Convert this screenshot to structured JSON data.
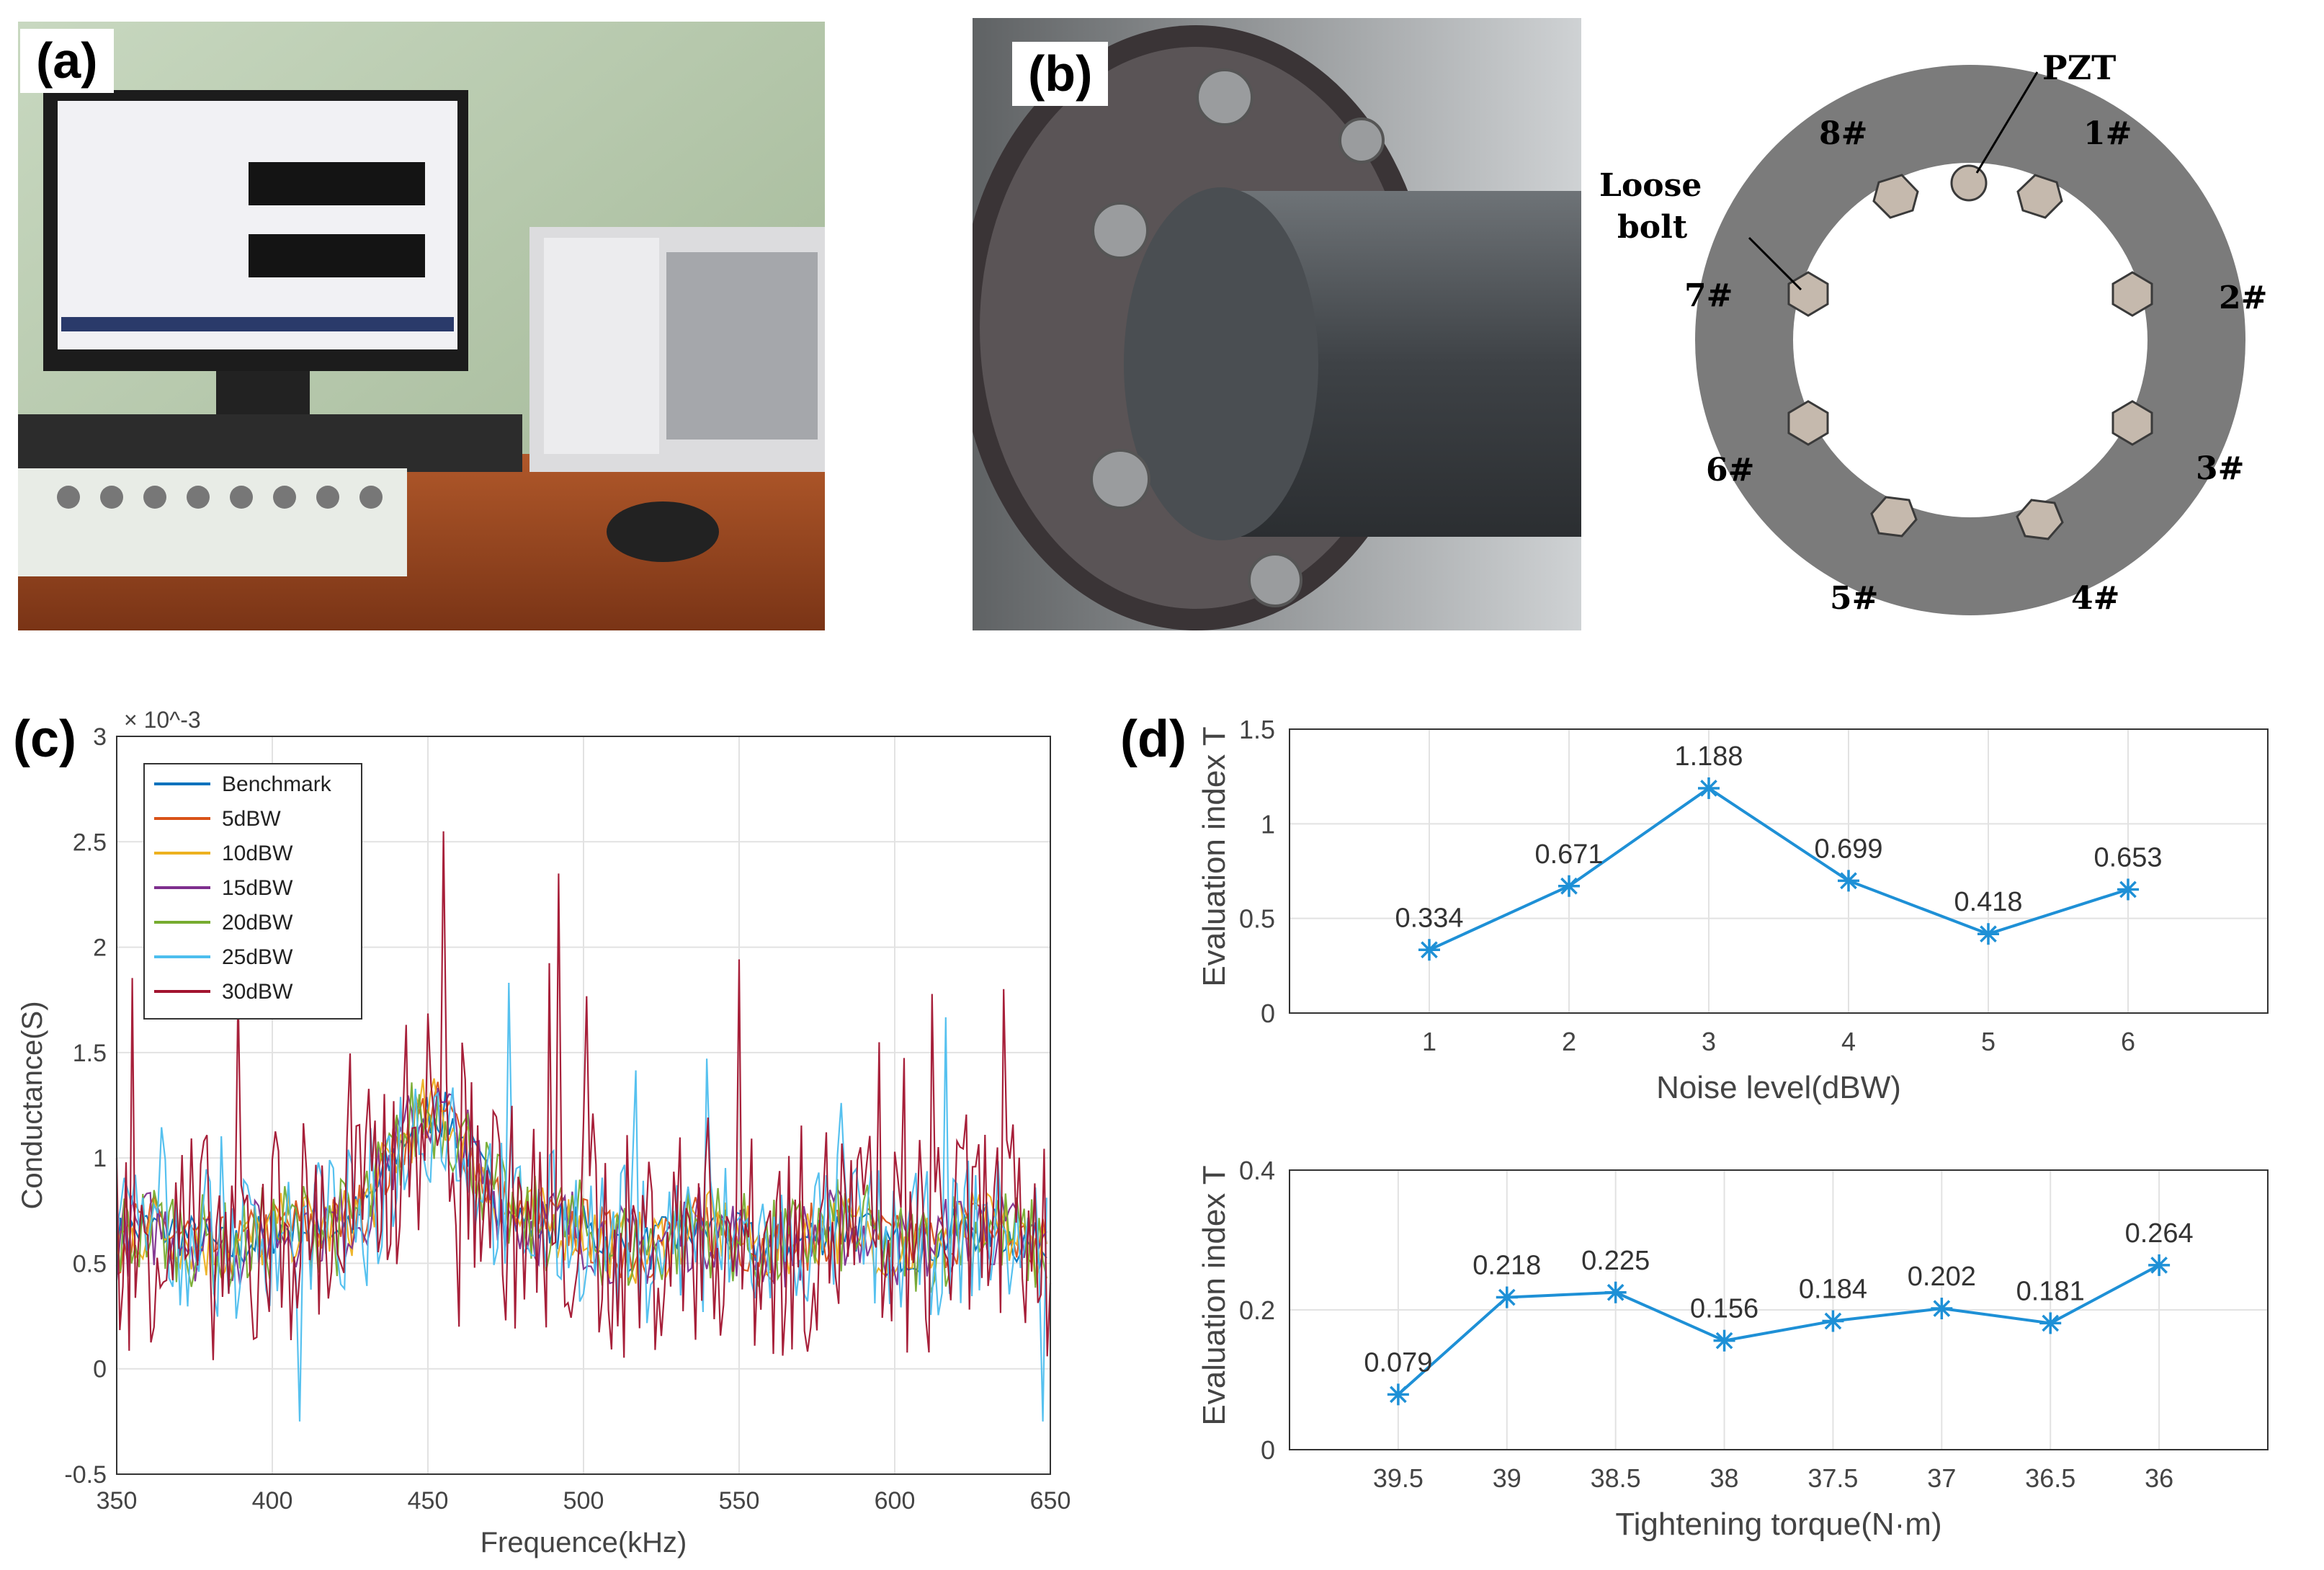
{
  "panel_a": {
    "label": "(a)"
  },
  "panel_b": {
    "label": "(b)",
    "pzt_label": "PZT",
    "loose_label_line1": "Loose",
    "loose_label_line2": "bolt",
    "bolts": [
      "1#",
      "2#",
      "3#",
      "4#",
      "5#",
      "6#",
      "7#",
      "8#"
    ]
  },
  "panel_c": {
    "label": "(c)",
    "exponent": "× 10^-3"
  },
  "panel_d": {
    "label": "(d)"
  },
  "chart_data": [
    {
      "id": "c",
      "type": "line",
      "title": "",
      "xlabel": "Frequence(kHz)",
      "ylabel": "Conductance(S)",
      "y_multiplier": "x 10^-3",
      "xlim": [
        350,
        650
      ],
      "ylim": [
        -0.5,
        3
      ],
      "x_ticks": [
        350,
        400,
        450,
        500,
        550,
        600,
        650
      ],
      "y_ticks": [
        -0.5,
        0,
        0.5,
        1,
        1.5,
        2,
        2.5,
        3
      ],
      "legend_position": "top-left",
      "grid": true,
      "series": [
        {
          "name": "Benchmark",
          "color": "#0072BD"
        },
        {
          "name": "5dBW",
          "color": "#D95319"
        },
        {
          "name": "10dBW",
          "color": "#EDB120"
        },
        {
          "name": "15dBW",
          "color": "#7E2F8E"
        },
        {
          "name": "20dBW",
          "color": "#77AC30"
        },
        {
          "name": "25dBW",
          "color": "#4DBEEE"
        },
        {
          "name": "30dBW",
          "color": "#A2142F"
        }
      ]
    },
    {
      "id": "d-top",
      "type": "line",
      "xlabel": "Noise level(dBW)",
      "ylabel": "Evaluation index T",
      "ylim": [
        0,
        1.5
      ],
      "y_ticks": [
        0,
        0.5,
        1,
        1.5
      ],
      "x_ticks": [
        "1",
        "2",
        "3",
        "4",
        "5",
        "6"
      ],
      "grid": true,
      "color": "#1E90D6",
      "categories": [
        "1",
        "2",
        "3",
        "4",
        "5",
        "6"
      ],
      "values": [
        0.334,
        0.671,
        1.188,
        0.699,
        0.418,
        0.653
      ],
      "labels": [
        "0.334",
        "0.671",
        "1.188",
        "0.699",
        "0.418",
        "0.653"
      ]
    },
    {
      "id": "d-bottom",
      "type": "line",
      "xlabel": "Tightening torque(N·m)",
      "ylabel": "Evaluation index T",
      "ylim": [
        0,
        0.4
      ],
      "y_ticks": [
        0,
        0.2,
        0.4
      ],
      "x_ticks": [
        "39.5",
        "39",
        "38.5",
        "38",
        "37.5",
        "37",
        "36.5",
        "36"
      ],
      "grid": true,
      "color": "#1E90D6",
      "categories": [
        "39.5",
        "39",
        "38.5",
        "38",
        "37.5",
        "37",
        "36.5",
        "36"
      ],
      "values": [
        0.079,
        0.218,
        0.225,
        0.156,
        0.184,
        0.202,
        0.181,
        0.264
      ],
      "labels": [
        "0.079",
        "0.218",
        "0.225",
        "0.156",
        "0.184",
        "0.202",
        "0.181",
        "0.264"
      ]
    }
  ]
}
